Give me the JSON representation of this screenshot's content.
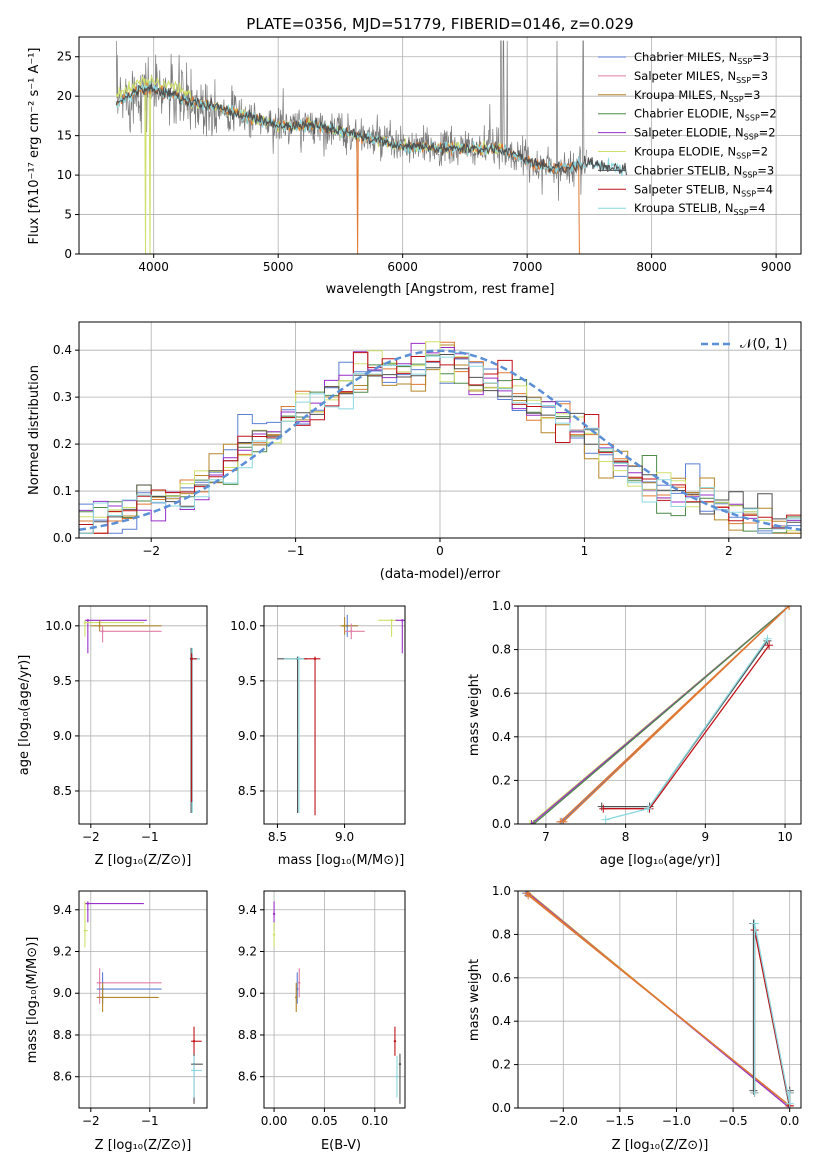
{
  "title": "PLATE=0356, MJD=51779, FIBERID=0146, z=0.029",
  "colors": {
    "Chabrier MILES": "#5b7fd6",
    "Salpeter MILES": "#e07ea5",
    "Kroupa MILES": "#b5862a",
    "Chabrier ELODIE": "#4f8a4a",
    "Salpeter ELODIE": "#9a2fc9",
    "Kroupa ELODIE": "#cfe06a",
    "Chabrier STELIB": "#505050",
    "Salpeter STELIB": "#c0121a",
    "Kroupa STELIB": "#8ad8e0",
    "data": "#7a7a7a",
    "orange": "#e07832",
    "gauss": "#5b8fd6"
  },
  "legend": [
    {
      "prefix": "Chabrier MILES, N",
      "sub": "SSP",
      "suffix": "=3",
      "key": "Chabrier MILES"
    },
    {
      "prefix": "Salpeter MILES, N",
      "sub": "SSP",
      "suffix": "=3",
      "key": "Salpeter MILES"
    },
    {
      "prefix": "Kroupa MILES, N",
      "sub": "SSP",
      "suffix": "=3",
      "key": "Kroupa MILES"
    },
    {
      "prefix": "Chabrier ELODIE, N",
      "sub": "SSP",
      "suffix": "=2",
      "key": "Chabrier ELODIE"
    },
    {
      "prefix": "Salpeter ELODIE, N",
      "sub": "SSP",
      "suffix": "=2",
      "key": "Salpeter ELODIE"
    },
    {
      "prefix": "Kroupa ELODIE, N",
      "sub": "SSP",
      "suffix": "=2",
      "key": "Kroupa ELODIE"
    },
    {
      "prefix": "Chabrier STELIB, N",
      "sub": "SSP",
      "suffix": "=3",
      "key": "Chabrier STELIB"
    },
    {
      "prefix": "Salpeter STELIB, N",
      "sub": "SSP",
      "suffix": "=4",
      "key": "Salpeter STELIB"
    },
    {
      "prefix": "Kroupa STELIB, N",
      "sub": "SSP",
      "suffix": "=4",
      "key": "Kroupa STELIB"
    }
  ],
  "labels": {
    "spec_x": "wavelength [Angstrom, rest frame]",
    "spec_y": "Flux [fλ10⁻¹⁷ erg cm⁻² s⁻¹ A⁻¹]",
    "hist_x": "(data-model)/error",
    "hist_y": "Normed distribution",
    "hist_legend": "𝒩(0, 1)",
    "age_y": "age  [log₁₀(age/yr)]",
    "Z_x": "Z [log₁₀(Z/Z⊙)]",
    "mass_x": "mass [log₁₀(M/M⊙)]",
    "mass_y": "mass [log₁₀(M/M⊙)]",
    "ebv_x": "E(B-V)",
    "mw_y": "mass weight",
    "age_x": "age  [log₁₀(age/yr)]"
  },
  "chart_data": [
    {
      "panel": "spectrum",
      "type": "line",
      "xlim": [
        3400,
        9200
      ],
      "ylim": [
        0,
        27.5
      ],
      "xticks": [
        4000,
        5000,
        6000,
        7000,
        8000,
        9000
      ],
      "yticks": [
        0,
        5,
        10,
        15,
        20,
        25
      ],
      "continuum": [
        [
          3700,
          19
        ],
        [
          3900,
          21
        ],
        [
          4100,
          20.5
        ],
        [
          4300,
          19.2
        ],
        [
          4500,
          18.7
        ],
        [
          4800,
          17.2
        ],
        [
          5000,
          16.2
        ],
        [
          5300,
          16.3
        ],
        [
          5600,
          15.2
        ],
        [
          6000,
          13.6
        ],
        [
          6400,
          13.4
        ],
        [
          6800,
          13.3
        ],
        [
          7000,
          11.8
        ],
        [
          7200,
          10.8
        ],
        [
          7500,
          11.5
        ],
        [
          8000,
          9.9
        ],
        [
          8500,
          9.8
        ],
        [
          8800,
          9.5
        ],
        [
          9200,
          9.4
        ]
      ],
      "data_spikes": [
        [
          3700,
          27
        ],
        [
          4230,
          23
        ],
        [
          5040,
          21
        ],
        [
          5900,
          17
        ],
        [
          6700,
          19
        ],
        [
          6790,
          27
        ],
        [
          6810,
          27
        ],
        [
          6840,
          27
        ],
        [
          7240,
          27
        ],
        [
          7450,
          27
        ]
      ],
      "model_drops": [
        [
          3935,
          0
        ],
        [
          3970,
          0
        ],
        [
          5640,
          0
        ],
        [
          6800,
          0
        ],
        [
          7420,
          0
        ]
      ],
      "grid": true
    },
    {
      "panel": "residual-histogram",
      "type": "histogram",
      "xlim": [
        -2.5,
        2.5
      ],
      "ylim": [
        0,
        0.46
      ],
      "xticks": [
        -2,
        -1,
        0,
        1,
        2
      ],
      "yticks": [
        0.0,
        0.1,
        0.2,
        0.3,
        0.4
      ],
      "bin_edges_start": -2.5,
      "bin_width": 0.1,
      "mean_profile": [
        0.04,
        0.04,
        0.05,
        0.06,
        0.08,
        0.09,
        0.1,
        0.09,
        0.1,
        0.13,
        0.16,
        0.19,
        0.21,
        0.22,
        0.25,
        0.26,
        0.27,
        0.29,
        0.32,
        0.35,
        0.37,
        0.36,
        0.35,
        0.37,
        0.38,
        0.37,
        0.36,
        0.35,
        0.34,
        0.33,
        0.31,
        0.29,
        0.27,
        0.25,
        0.22,
        0.2,
        0.18,
        0.16,
        0.14,
        0.12,
        0.1,
        0.09,
        0.08,
        0.07,
        0.06,
        0.05,
        0.05,
        0.04,
        0.03,
        0.03
      ],
      "gaussian": "N(0,1)",
      "grid": true
    },
    {
      "panel": "age-vs-Z",
      "type": "scatter",
      "xlim": [
        -2.2,
        -0.03
      ],
      "ylim": [
        8.2,
        10.18
      ],
      "xticks": [
        -2,
        -1
      ],
      "yticks": [
        8.5,
        9.0,
        9.5,
        10.0
      ],
      "points": [
        {
          "key": "Salpeter ELODIE",
          "x": -2.05,
          "y": 10.05,
          "x0": -2.1,
          "x1": -1.05,
          "y0": 9.75,
          "y1": 10.05
        },
        {
          "key": "Kroupa ELODIE",
          "x": -2.1,
          "y": 10.03,
          "x0": -2.1,
          "x1": -1.1,
          "y0": 9.9,
          "y1": 10.05
        },
        {
          "key": "Kroupa MILES",
          "x": -1.85,
          "y": 10.0,
          "x0": -2.0,
          "x1": -0.8,
          "y0": 9.95,
          "y1": 10.05
        },
        {
          "key": "Salpeter MILES",
          "x": -1.8,
          "y": 9.95,
          "x0": -1.85,
          "x1": -0.8,
          "y0": 9.85,
          "y1": 10.0
        },
        {
          "key": "Chabrier STELIB",
          "x": -0.3,
          "y": 9.7,
          "x0": -0.32,
          "x1": -0.15,
          "y0": 8.3,
          "y1": 9.8
        },
        {
          "key": "Kroupa STELIB",
          "x": -0.28,
          "y": 9.7,
          "x0": -0.3,
          "x1": -0.15,
          "y0": 8.3,
          "y1": 9.8
        },
        {
          "key": "Salpeter STELIB",
          "x": -0.29,
          "y": 9.7,
          "x0": -0.3,
          "x1": -0.2,
          "y0": 8.4,
          "y1": 9.75
        }
      ]
    },
    {
      "panel": "age-vs-mass",
      "type": "scatter",
      "xlim": [
        8.4,
        9.45
      ],
      "ylim": [
        8.2,
        10.18
      ],
      "xticks": [
        8.5,
        9.0
      ],
      "yticks": [
        8.5,
        9.0,
        9.5,
        10.0
      ],
      "points": [
        {
          "key": "Chabrier STELIB",
          "x": 8.65,
          "y": 9.7,
          "x0": 8.5,
          "x1": 8.72,
          "y0": 8.3,
          "y1": 9.72
        },
        {
          "key": "Kroupa STELIB",
          "x": 8.66,
          "y": 9.7,
          "x0": 8.55,
          "x1": 8.7,
          "y0": 8.3,
          "y1": 9.72
        },
        {
          "key": "Salpeter STELIB",
          "x": 8.78,
          "y": 9.7,
          "x0": 8.7,
          "x1": 8.82,
          "y0": 8.28,
          "y1": 9.72
        },
        {
          "key": "Chabrier MILES",
          "x": 9.02,
          "y": 10.0,
          "x0": 8.98,
          "x1": 9.1,
          "y0": 9.9,
          "y1": 10.1
        },
        {
          "key": "Kroupa MILES",
          "x": 9.0,
          "y": 10.0,
          "x0": 8.97,
          "x1": 9.1,
          "y0": 9.92,
          "y1": 10.08
        },
        {
          "key": "Salpeter MILES",
          "x": 9.05,
          "y": 9.95,
          "x0": 9.0,
          "x1": 9.15,
          "y0": 9.88,
          "y1": 10.02
        },
        {
          "key": "Kroupa ELODIE",
          "x": 9.35,
          "y": 10.05,
          "x0": 9.25,
          "x1": 9.4,
          "y0": 9.9,
          "y1": 10.05
        },
        {
          "key": "Salpeter ELODIE",
          "x": 9.43,
          "y": 10.05,
          "x0": 9.38,
          "x1": 9.45,
          "y0": 9.75,
          "y1": 10.05
        }
      ]
    },
    {
      "panel": "mass-weight-vs-age",
      "type": "line",
      "xlim": [
        6.65,
        10.2
      ],
      "ylim": [
        0,
        1
      ],
      "xticks": [
        7,
        8,
        9,
        10
      ],
      "yticks": [
        0.0,
        0.2,
        0.4,
        0.6,
        0.8,
        1.0
      ],
      "series": [
        {
          "key": "Kroupa ELODIE",
          "x": [
            6.8,
            10.05
          ],
          "y": [
            0.0,
            1.0
          ]
        },
        {
          "key": "Salpeter ELODIE",
          "x": [
            6.82,
            10.05
          ],
          "y": [
            0.0,
            1.0
          ]
        },
        {
          "key": "Chabrier ELODIE",
          "x": [
            6.85,
            10.05
          ],
          "y": [
            0.0,
            1.0
          ]
        },
        {
          "key": "Chabrier MILES",
          "x": [
            7.2,
            10.05
          ],
          "y": [
            0.01,
            1.0
          ]
        },
        {
          "key": "Salpeter MILES",
          "x": [
            7.22,
            10.05
          ],
          "y": [
            0.01,
            1.0
          ]
        },
        {
          "key": "Kroupa MILES",
          "x": [
            7.18,
            10.05
          ],
          "y": [
            0.01,
            1.0
          ]
        },
        {
          "key": "Chabrier STELIB",
          "x": [
            7.7,
            8.3,
            9.78
          ],
          "y": [
            0.08,
            0.08,
            0.84
          ]
        },
        {
          "key": "Salpeter STELIB",
          "x": [
            7.72,
            8.3,
            9.8
          ],
          "y": [
            0.07,
            0.07,
            0.82
          ]
        },
        {
          "key": "Kroupa STELIB",
          "x": [
            7.75,
            8.28,
            9.78
          ],
          "y": [
            0.02,
            0.07,
            0.85
          ]
        }
      ]
    },
    {
      "panel": "mass-vs-Z",
      "type": "scatter",
      "xlim": [
        -2.2,
        -0.03
      ],
      "ylim": [
        8.45,
        9.49
      ],
      "xticks": [
        -2,
        -1
      ],
      "yticks": [
        8.6,
        8.8,
        9.0,
        9.2,
        9.4
      ],
      "points": [
        {
          "key": "Salpeter ELODIE",
          "x": -2.05,
          "y": 9.43,
          "x0": -2.1,
          "x1": -1.1,
          "y0": 9.34,
          "y1": 9.44
        },
        {
          "key": "Kroupa ELODIE",
          "x": -2.1,
          "y": 9.3,
          "x0": -2.12,
          "x1": -2.05,
          "y0": 9.22,
          "y1": 9.44
        },
        {
          "key": "Salpeter MILES",
          "x": -1.85,
          "y": 9.05,
          "x0": -1.9,
          "x1": -0.8,
          "y0": 8.95,
          "y1": 9.12
        },
        {
          "key": "Chabrier MILES",
          "x": -1.8,
          "y": 9.02,
          "x0": -1.9,
          "x1": -0.8,
          "y0": 8.95,
          "y1": 9.1
        },
        {
          "key": "Kroupa MILES",
          "x": -1.8,
          "y": 8.98,
          "x0": -1.9,
          "x1": -0.85,
          "y0": 8.91,
          "y1": 9.05
        },
        {
          "key": "Salpeter STELIB",
          "x": -0.25,
          "y": 8.77,
          "x0": -0.3,
          "x1": -0.12,
          "y0": 8.7,
          "y1": 8.84
        },
        {
          "key": "Chabrier STELIB",
          "x": -0.25,
          "y": 8.66,
          "x0": -0.3,
          "x1": -0.1,
          "y0": 8.47,
          "y1": 8.71
        },
        {
          "key": "Kroupa STELIB",
          "x": -0.25,
          "y": 8.63,
          "x0": -0.3,
          "x1": -0.12,
          "y0": 8.5,
          "y1": 8.7
        }
      ]
    },
    {
      "panel": "mass-vs-ebv",
      "type": "scatter",
      "xlim": [
        -0.01,
        0.13
      ],
      "ylim": [
        8.45,
        9.49
      ],
      "xticks": [
        0.0,
        0.05,
        0.1
      ],
      "yticks": [
        8.6,
        8.8,
        9.0,
        9.2,
        9.4
      ],
      "points": [
        {
          "key": "Salpeter ELODIE",
          "x": 0.0,
          "y": 9.38,
          "y0": 9.3,
          "y1": 9.44
        },
        {
          "key": "Kroupa ELODIE",
          "x": 0.0,
          "y": 9.28,
          "y0": 9.22,
          "y1": 9.34
        },
        {
          "key": "Salpeter MILES",
          "x": 0.025,
          "y": 9.05,
          "y0": 8.98,
          "y1": 9.12
        },
        {
          "key": "Chabrier MILES",
          "x": 0.023,
          "y": 9.02,
          "y0": 8.95,
          "y1": 9.1
        },
        {
          "key": "Kroupa MILES",
          "x": 0.022,
          "y": 8.98,
          "y0": 8.91,
          "y1": 9.05
        },
        {
          "key": "Salpeter STELIB",
          "x": 0.12,
          "y": 8.77,
          "y0": 8.7,
          "y1": 8.84
        },
        {
          "key": "Chabrier STELIB",
          "x": 0.125,
          "y": 8.66,
          "y0": 8.47,
          "y1": 8.71
        },
        {
          "key": "Kroupa STELIB",
          "x": 0.122,
          "y": 8.6,
          "y0": 8.5,
          "y1": 8.7
        }
      ]
    },
    {
      "panel": "mass-weight-vs-Z",
      "type": "line",
      "xlim": [
        -2.4,
        0.1
      ],
      "ylim": [
        0,
        1
      ],
      "xticks": [
        -2.0,
        -1.5,
        -1.0,
        -0.5,
        0.0
      ],
      "yticks": [
        0.0,
        0.2,
        0.4,
        0.6,
        0.8,
        1.0
      ],
      "series": [
        {
          "key": "Kroupa ELODIE",
          "x": [
            -2.32,
            0.0
          ],
          "y": [
            1.0,
            0.0
          ]
        },
        {
          "key": "Salpeter ELODIE",
          "x": [
            -2.33,
            0.0
          ],
          "y": [
            1.0,
            0.0
          ]
        },
        {
          "key": "Chabrier MILES",
          "x": [
            -2.33,
            0.0
          ],
          "y": [
            0.99,
            0.01
          ]
        },
        {
          "key": "Salpeter MILES",
          "x": [
            -2.32,
            0.0
          ],
          "y": [
            0.99,
            0.01
          ]
        },
        {
          "key": "Kroupa MILES",
          "x": [
            -2.31,
            0.0
          ],
          "y": [
            0.98,
            0.01
          ]
        },
        {
          "key": "Chabrier STELIB",
          "x": [
            -0.32,
            -0.32,
            0.0,
            0.0
          ],
          "y": [
            0.08,
            0.85,
            0.0,
            0.08
          ]
        },
        {
          "key": "Salpeter STELIB",
          "x": [
            -0.31,
            -0.31,
            0.0,
            0.0
          ],
          "y": [
            0.07,
            0.82,
            0.01,
            0.07
          ]
        },
        {
          "key": "Kroupa STELIB",
          "x": [
            -0.31,
            -0.31,
            0.0,
            0.0
          ],
          "y": [
            0.07,
            0.85,
            0.02,
            0.07
          ]
        }
      ]
    }
  ]
}
